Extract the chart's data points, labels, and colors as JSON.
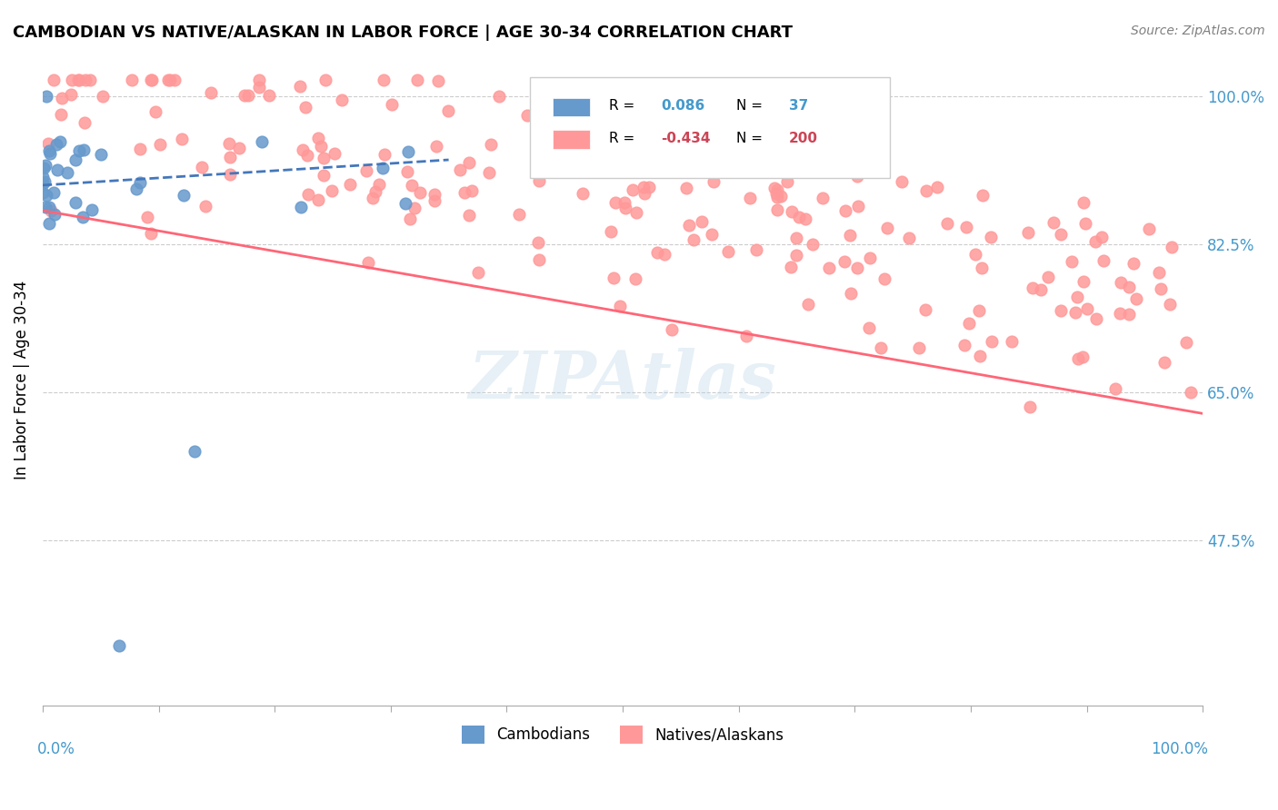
{
  "title": "CAMBODIAN VS NATIVE/ALASKAN IN LABOR FORCE | AGE 30-34 CORRELATION CHART",
  "source": "Source: ZipAtlas.com",
  "ylabel": "In Labor Force | Age 30-34",
  "ytick_labels": [
    "100.0%",
    "82.5%",
    "65.0%",
    "47.5%"
  ],
  "ytick_values": [
    1.0,
    0.825,
    0.65,
    0.475
  ],
  "cambodian_color": "#6699CC",
  "native_color": "#FF9999",
  "cambodian_trend_color": "#4477BB",
  "native_trend_color": "#FF6677",
  "R_cambodian": 0.086,
  "N_cambodian": 37,
  "R_native": -0.434,
  "N_native": 200,
  "background_color": "#FFFFFF",
  "legend_label_cambodian": "Cambodians",
  "legend_label_native": "Natives/Alaskans",
  "cam_trend_x": [
    0.0,
    0.35
  ],
  "cam_trend_y": [
    0.895,
    0.925
  ],
  "nat_trend_x": [
    0.0,
    1.0
  ],
  "nat_trend_y": [
    0.865,
    0.625
  ],
  "xlim": [
    0.0,
    1.0
  ],
  "ylim": [
    0.28,
    1.05
  ]
}
